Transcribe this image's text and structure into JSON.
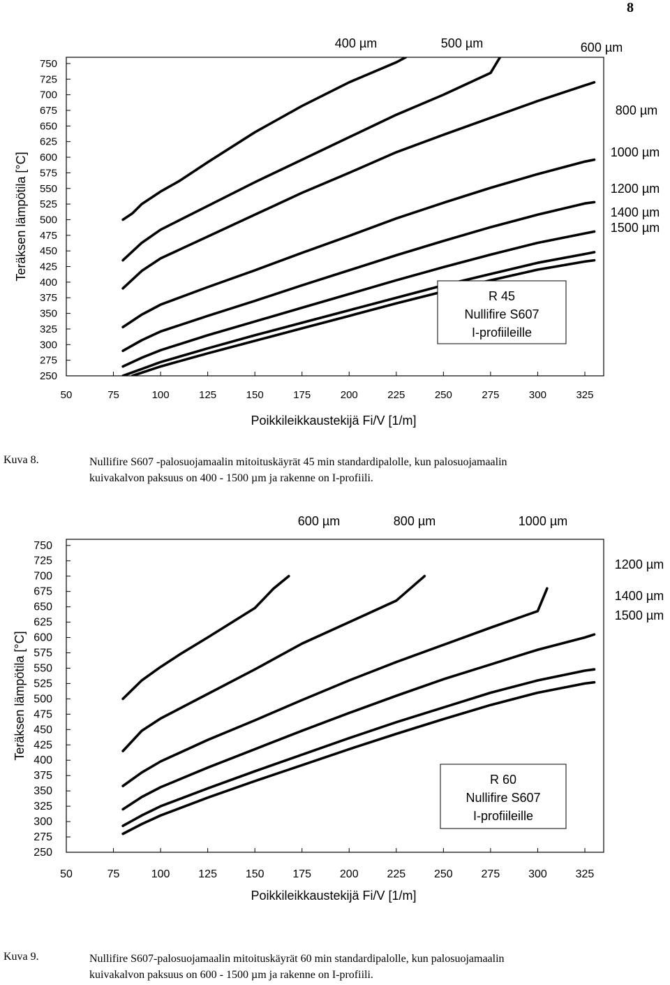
{
  "page_number": "8",
  "chart_data": [
    {
      "type": "line",
      "ylabel": "Teräksen lämpötila [°C]",
      "xlabel": "Poikkileikkaustekijä Fi/V [1/m]",
      "x_ticks": [
        50,
        75,
        100,
        125,
        150,
        175,
        200,
        225,
        250,
        275,
        300,
        325
      ],
      "y_ticks": [
        250,
        275,
        300,
        325,
        350,
        375,
        400,
        425,
        450,
        475,
        500,
        525,
        550,
        575,
        600,
        625,
        650,
        675,
        700,
        725,
        750
      ],
      "xlim": [
        50,
        335
      ],
      "ylim": [
        250,
        760
      ],
      "grid": false,
      "legend_box": [
        "R 45",
        "Nullifire S607",
        "I-profiileille"
      ],
      "series": [
        {
          "name": "400 µm",
          "x": [
            80,
            85,
            90,
            100,
            110,
            125,
            150,
            175,
            200,
            225,
            230
          ],
          "y": [
            500,
            510,
            525,
            545,
            562,
            592,
            640,
            682,
            720,
            752,
            760
          ]
        },
        {
          "name": "500 µm",
          "x": [
            80,
            90,
            100,
            125,
            150,
            175,
            200,
            225,
            250,
            275,
            280
          ],
          "y": [
            435,
            463,
            484,
            522,
            560,
            596,
            632,
            668,
            700,
            735,
            760
          ]
        },
        {
          "name": "600 µm",
          "x": [
            80,
            90,
            100,
            125,
            150,
            175,
            200,
            225,
            250,
            275,
            300,
            325,
            330
          ],
          "y": [
            390,
            418,
            438,
            473,
            508,
            543,
            575,
            608,
            636,
            663,
            690,
            715,
            720
          ]
        },
        {
          "name": "800 µm",
          "x": [
            80,
            90,
            100,
            125,
            150,
            175,
            200,
            225,
            250,
            275,
            300,
            325,
            330
          ],
          "y": [
            328,
            348,
            364,
            392,
            419,
            447,
            474,
            502,
            527,
            551,
            573,
            593,
            596
          ]
        },
        {
          "name": "1000 µm",
          "x": [
            80,
            90,
            100,
            125,
            150,
            175,
            200,
            225,
            250,
            275,
            300,
            325,
            330
          ],
          "y": [
            290,
            307,
            321,
            346,
            370,
            395,
            419,
            443,
            466,
            488,
            508,
            526,
            528
          ]
        },
        {
          "name": "1200 µm",
          "x": [
            80,
            90,
            100,
            125,
            150,
            175,
            200,
            225,
            250,
            275,
            300,
            325,
            330
          ],
          "y": [
            265,
            279,
            291,
            315,
            337,
            359,
            381,
            403,
            424,
            444,
            463,
            478,
            481
          ]
        },
        {
          "name": "1400 µm",
          "x": [
            80,
            90,
            100,
            125,
            150,
            175,
            200,
            225,
            250,
            275,
            300,
            325,
            330
          ],
          "y": [
            250,
            261,
            272,
            294,
            315,
            335,
            355,
            375,
            395,
            413,
            431,
            445,
            448
          ]
        },
        {
          "name": "1500 µm",
          "x": [
            85,
            90,
            100,
            125,
            150,
            175,
            200,
            225,
            250,
            275,
            300,
            325,
            330
          ],
          "y": [
            250,
            255,
            265,
            286,
            306,
            326,
            346,
            366,
            385,
            403,
            420,
            433,
            435
          ]
        }
      ]
    },
    {
      "type": "line",
      "ylabel": "Teräksen lämpötila [°C]",
      "xlabel": "Poikkileikkaustekijä Fi/V [1/m]",
      "x_ticks": [
        50,
        75,
        100,
        125,
        150,
        175,
        200,
        225,
        250,
        275,
        300,
        325
      ],
      "y_ticks": [
        250,
        275,
        300,
        325,
        350,
        375,
        400,
        425,
        450,
        475,
        500,
        525,
        550,
        575,
        600,
        625,
        650,
        675,
        700,
        725,
        750
      ],
      "xlim": [
        50,
        335
      ],
      "ylim": [
        250,
        760
      ],
      "grid": false,
      "legend_box": [
        "R 60",
        "Nullifire S607",
        "I-profiileille"
      ],
      "series": [
        {
          "name": "600 µm",
          "x": [
            80,
            85,
            90,
            100,
            110,
            125,
            150,
            160,
            168
          ],
          "y": [
            500,
            515,
            530,
            552,
            572,
            600,
            648,
            680,
            700
          ]
        },
        {
          "name": "800 µm",
          "x": [
            80,
            90,
            100,
            125,
            150,
            175,
            200,
            225,
            240
          ],
          "y": [
            415,
            448,
            468,
            508,
            548,
            590,
            625,
            660,
            700
          ]
        },
        {
          "name": "1000 µm",
          "x": [
            80,
            90,
            100,
            125,
            150,
            175,
            200,
            225,
            250,
            275,
            300,
            305
          ],
          "y": [
            358,
            380,
            398,
            433,
            465,
            498,
            530,
            560,
            588,
            616,
            643,
            680
          ]
        },
        {
          "name": "1200 µm",
          "x": [
            80,
            90,
            100,
            125,
            150,
            175,
            200,
            225,
            250,
            275,
            300,
            325,
            330
          ],
          "y": [
            320,
            340,
            356,
            388,
            418,
            448,
            477,
            505,
            532,
            556,
            580,
            600,
            605
          ]
        },
        {
          "name": "1400 µm",
          "x": [
            80,
            90,
            100,
            125,
            150,
            175,
            200,
            225,
            250,
            275,
            300,
            325,
            330
          ],
          "y": [
            293,
            310,
            325,
            354,
            382,
            409,
            436,
            462,
            486,
            510,
            530,
            546,
            548
          ]
        },
        {
          "name": "1500 µm",
          "x": [
            80,
            90,
            100,
            125,
            150,
            175,
            200,
            225,
            250,
            275,
            300,
            325,
            330
          ],
          "y": [
            280,
            296,
            310,
            339,
            366,
            392,
            418,
            443,
            467,
            490,
            510,
            525,
            527
          ]
        }
      ]
    }
  ],
  "captions": [
    {
      "label": "Kuva 8.",
      "line1": "Nullifire S607 -palosuojamaalin mitoituskäyrät 45 min standardipalolle, kun  palosuojamaalin",
      "line2": "kuivakalvon paksuus on 400 - 1500 µm ja rakenne on I-profiili."
    },
    {
      "label": "Kuva 9.",
      "line1": "Nullifire S607-palosuojamaalin mitoituskäyrät 60 min standardipalolle, kun  palosuojamaalin",
      "line2": "kuivakalvon paksuus on 600 - 1500 µm ja rakenne on I-profiili."
    }
  ]
}
